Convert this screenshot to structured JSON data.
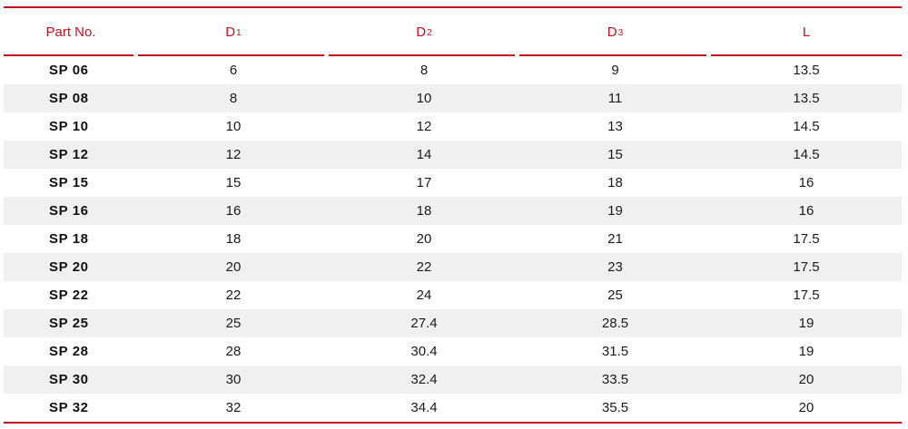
{
  "table": {
    "headers": [
      {
        "main": "Part No.",
        "sub": ""
      },
      {
        "main": "D",
        "sub": "1"
      },
      {
        "main": "D",
        "sub": "2"
      },
      {
        "main": "D",
        "sub": "3"
      },
      {
        "main": "L",
        "sub": ""
      }
    ],
    "rows": [
      [
        "SP 06",
        "6",
        "8",
        "9",
        "13.5"
      ],
      [
        "SP 08",
        "8",
        "10",
        "11",
        "13.5"
      ],
      [
        "SP 10",
        "10",
        "12",
        "13",
        "14.5"
      ],
      [
        "SP 12",
        "12",
        "14",
        "15",
        "14.5"
      ],
      [
        "SP 15",
        "15",
        "17",
        "18",
        "16"
      ],
      [
        "SP 16",
        "16",
        "18",
        "19",
        "16"
      ],
      [
        "SP 18",
        "18",
        "20",
        "21",
        "17.5"
      ],
      [
        "SP 20",
        "20",
        "22",
        "23",
        "17.5"
      ],
      [
        "SP 22",
        "22",
        "24",
        "25",
        "17.5"
      ],
      [
        "SP 25",
        "25",
        "27.4",
        "28.5",
        "19"
      ],
      [
        "SP 28",
        "28",
        "30.4",
        "31.5",
        "19"
      ],
      [
        "SP 30",
        "30",
        "32.4",
        "33.5",
        "20"
      ],
      [
        "SP 32",
        "32",
        "34.4",
        "35.5",
        "20"
      ]
    ]
  },
  "colors": {
    "accent": "#c1121f",
    "stripe": "#f0f0f0",
    "text": "#1a1a1a"
  }
}
